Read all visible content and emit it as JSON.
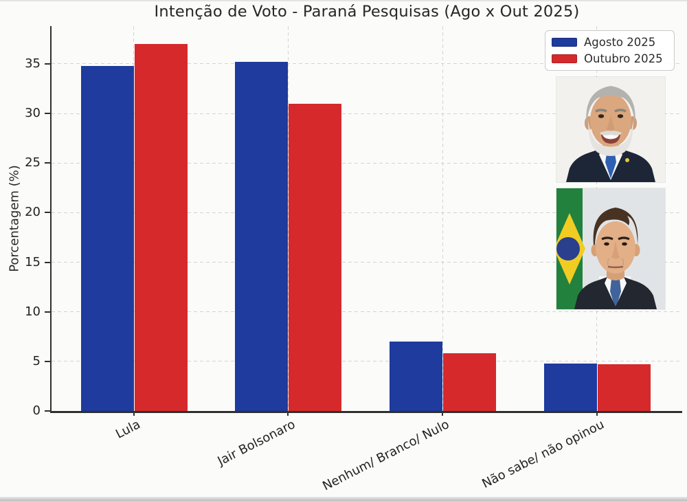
{
  "chart_data": {
    "type": "bar",
    "title": "Intenção de Voto - Paraná Pesquisas (Ago x Out 2025)",
    "xlabel": "",
    "ylabel": "Porcentagem (%)",
    "categories": [
      "Lula",
      "Jair Bolsonaro",
      "Nenhum/ Branco/ Nulo",
      "Não sabe/ não opinou"
    ],
    "series": [
      {
        "name": "Agosto 2025",
        "color": "#1e3b9d",
        "values": [
          34.8,
          35.2,
          7.0,
          4.8
        ]
      },
      {
        "name": "Outubro 2025",
        "color": "#d6292b",
        "values": [
          37.0,
          31.0,
          5.8,
          4.7
        ]
      }
    ],
    "yticks": [
      0,
      5,
      10,
      15,
      20,
      25,
      30,
      35
    ],
    "ylim": [
      0,
      38.8
    ],
    "grid": true,
    "grid_style": "dashed",
    "legend_position": "upper right",
    "x_tick_rotation_deg": 27
  },
  "portraits": [
    {
      "name": "lula-portrait",
      "depicts": "Lula"
    },
    {
      "name": "bolsonaro-portrait",
      "depicts": "Jair Bolsonaro"
    }
  ]
}
